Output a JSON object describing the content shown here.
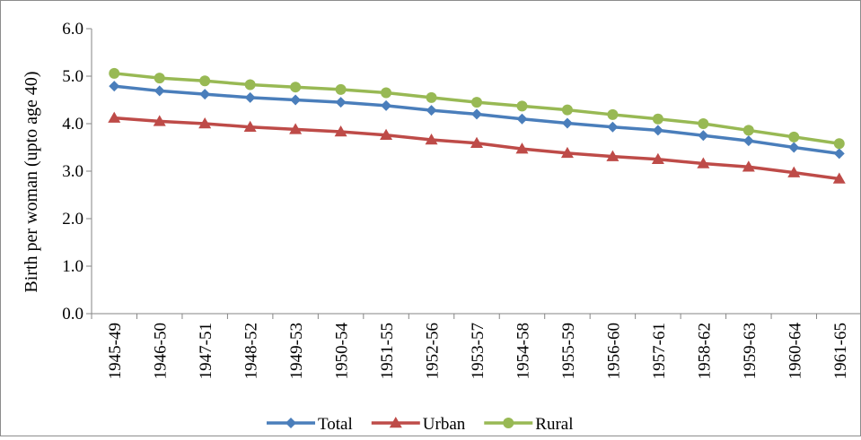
{
  "chart_data": {
    "type": "line",
    "title": "",
    "xlabel": "",
    "ylabel": "Birth per woman (upto age 40)",
    "ylim": [
      0,
      6
    ],
    "yticks": [
      "0.0",
      "1.0",
      "2.0",
      "3.0",
      "4.0",
      "5.0",
      "6.0"
    ],
    "grid": false,
    "legend_position": "bottom",
    "categories": [
      "1945-49",
      "1946-50",
      "1947-51",
      "1948-52",
      "1949-53",
      "1950-54",
      "1951-55",
      "1952-56",
      "1953-57",
      "1954-58",
      "1955-59",
      "1956-60",
      "1957-61",
      "1958-62",
      "1959-63",
      "1960-64",
      "1961-65"
    ],
    "series": [
      {
        "name": "Total",
        "color": "#4a7ebb",
        "marker": "diamond",
        "values": [
          4.79,
          4.69,
          4.62,
          4.55,
          4.5,
          4.45,
          4.38,
          4.28,
          4.2,
          4.1,
          4.01,
          3.93,
          3.86,
          3.75,
          3.64,
          3.5,
          3.37
        ]
      },
      {
        "name": "Urban",
        "color": "#be4b48",
        "marker": "triangle",
        "values": [
          4.12,
          4.05,
          4.0,
          3.93,
          3.88,
          3.83,
          3.76,
          3.66,
          3.59,
          3.47,
          3.38,
          3.31,
          3.25,
          3.16,
          3.09,
          2.97,
          2.84
        ]
      },
      {
        "name": "Rural",
        "color": "#98b954",
        "marker": "circle",
        "values": [
          5.06,
          4.96,
          4.9,
          4.82,
          4.77,
          4.72,
          4.65,
          4.55,
          4.45,
          4.37,
          4.29,
          4.19,
          4.1,
          4.0,
          3.86,
          3.72,
          3.58
        ]
      }
    ]
  }
}
